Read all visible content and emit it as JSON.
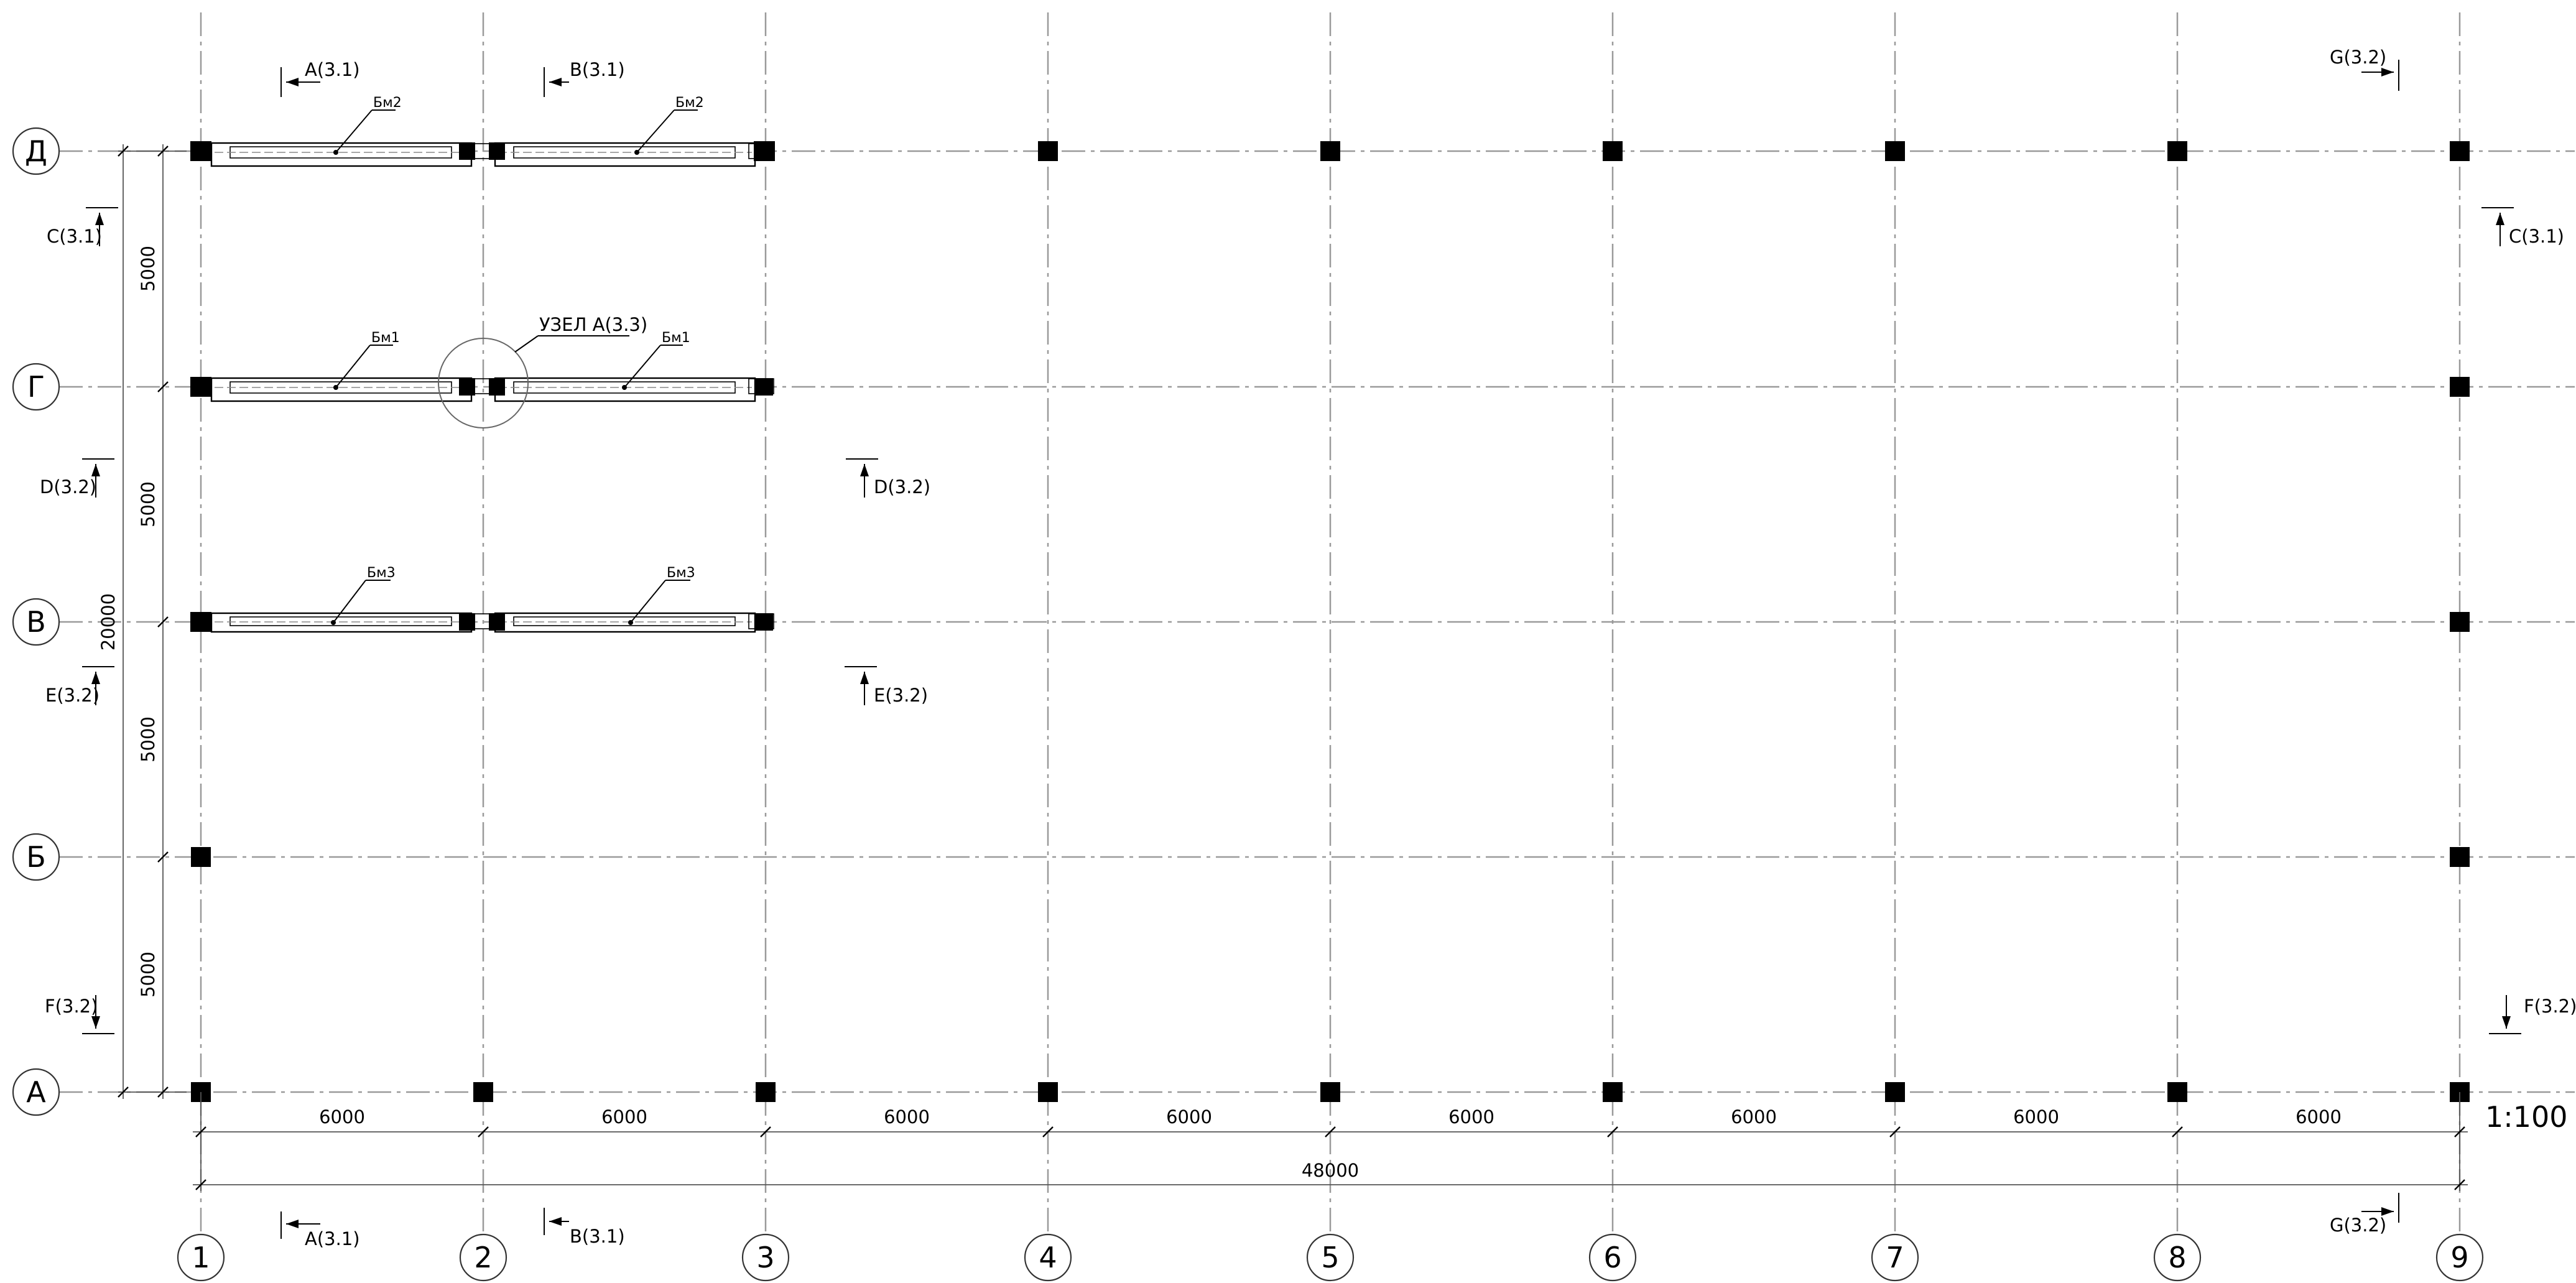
{
  "grid": {
    "columns": [
      "1",
      "2",
      "3",
      "4",
      "5",
      "6",
      "7",
      "8",
      "9"
    ],
    "rows": [
      "Д",
      "Г",
      "В",
      "Б",
      "А"
    ]
  },
  "dimensions": {
    "spans": [
      "6000",
      "6000",
      "6000",
      "6000",
      "6000",
      "6000",
      "6000",
      "6000"
    ],
    "total_horizontal": "48000",
    "rows_spans": [
      "5000",
      "5000",
      "5000",
      "5000"
    ],
    "total_vertical": "20000"
  },
  "beams": {
    "row_d": "Бм2",
    "row_g": "Бм1",
    "row_v": "Бм3"
  },
  "node_label": "УЗЕЛ А(3.3)",
  "scale": "1:100",
  "sections": {
    "a_top": "A(3.1)",
    "b_top": "B(3.1)",
    "a_bottom": "A(3.1)",
    "b_bottom": "B(3.1)",
    "g_top": "G(3.2)",
    "g_bottom": "G(3.2)",
    "c_left": "C(3.1)",
    "c_right": "C(3.1)",
    "d_left": "D(3.2)",
    "d_mid": "D(3.2)",
    "e_left": "E(3.2)",
    "e_mid": "E(3.2)",
    "f_left": "F(3.2)",
    "f_right": "F(3.2)"
  },
  "colors": {
    "axis": "#9a9a9a",
    "column": "#000000"
  }
}
